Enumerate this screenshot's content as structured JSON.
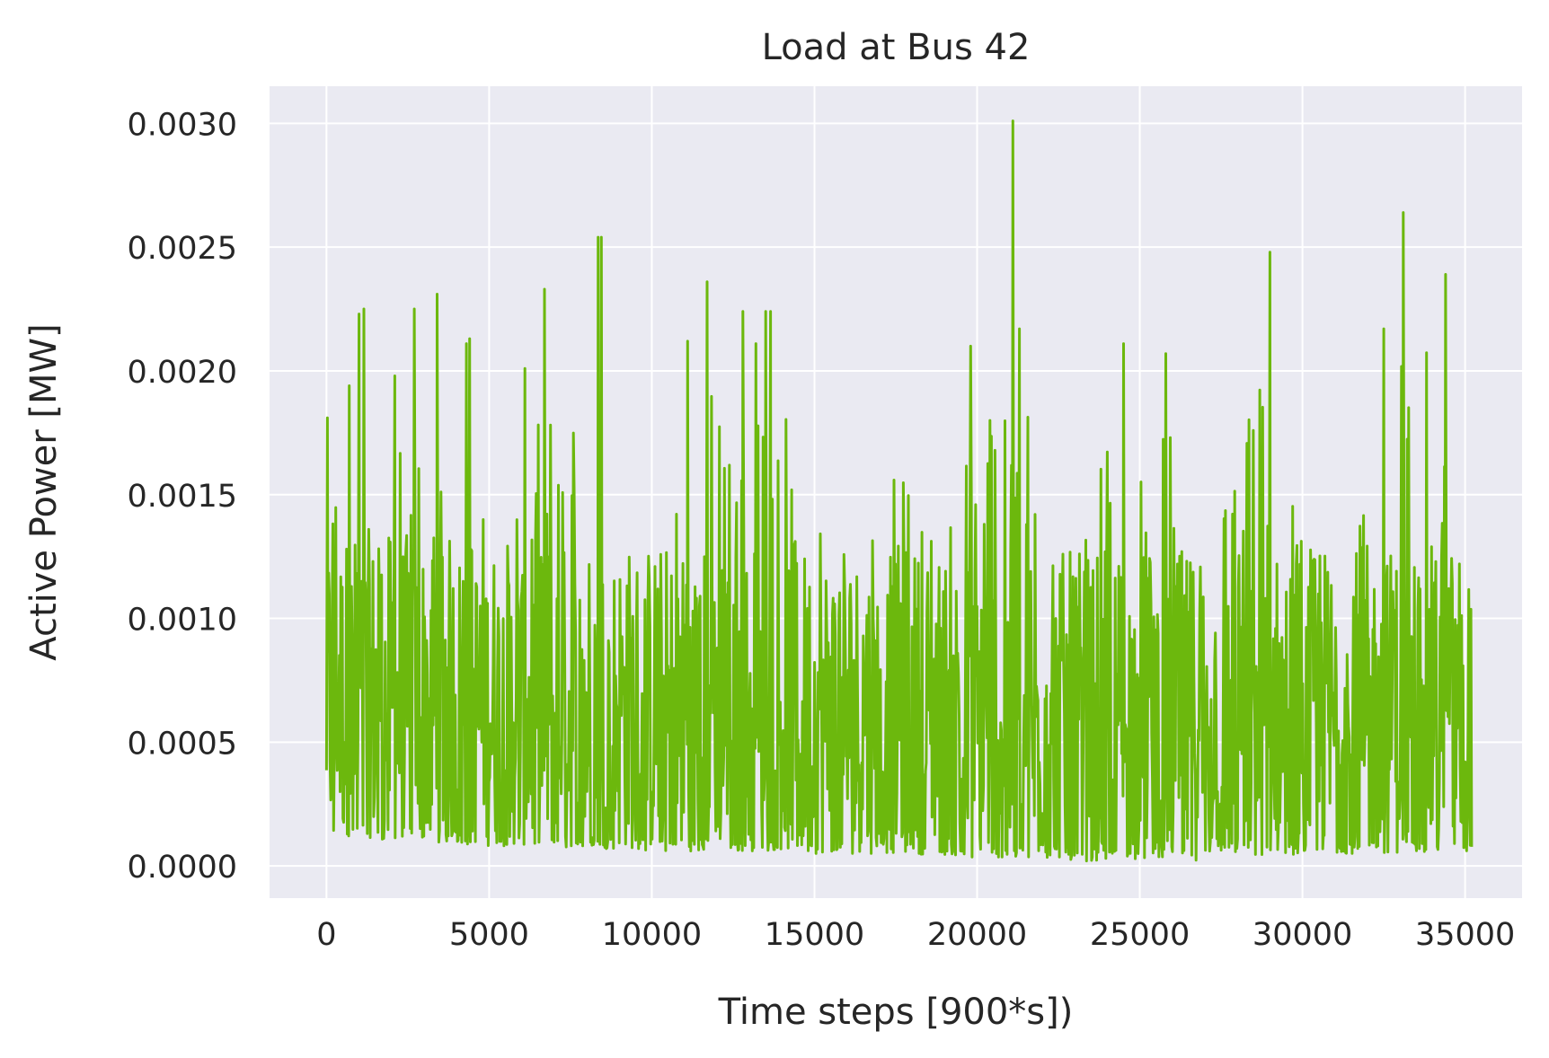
{
  "chart_data": {
    "type": "line",
    "title": "Load at Bus 42",
    "xlabel": "Time steps [900*s])",
    "ylabel": "Active Power [MW]",
    "xlim": [
      -1750,
      36750
    ],
    "ylim": [
      -0.00013,
      0.00315
    ],
    "xticks": [
      0,
      5000,
      10000,
      15000,
      20000,
      25000,
      30000,
      35000
    ],
    "xtick_labels": [
      "0",
      "5000",
      "10000",
      "15000",
      "20000",
      "25000",
      "30000",
      "35000"
    ],
    "yticks": [
      0.0,
      0.0005,
      0.001,
      0.0015,
      0.002,
      0.0025,
      0.003
    ],
    "ytick_labels": [
      "0.0000",
      "0.0005",
      "0.0010",
      "0.0015",
      "0.0020",
      "0.0025",
      "0.0030"
    ],
    "grid": true,
    "colors": {
      "background": "#eaeaf2",
      "grid": "#ffffff",
      "series": "#6cb80d"
    },
    "series": [
      {
        "color": "#6cb80d",
        "envelope": {
          "x": [
            0,
            1000,
            2000,
            3000,
            4000,
            5000,
            6000,
            7000,
            8000,
            9000,
            10000,
            11000,
            12000,
            13000,
            14000,
            15000,
            16000,
            17000,
            18000,
            19000,
            20000,
            21000,
            22000,
            23000,
            24000,
            25000,
            26000,
            27000,
            28000,
            29000,
            30000,
            31000,
            32000,
            33000,
            34000,
            35000
          ],
          "upper": [
            0.0018,
            0.0022,
            0.002,
            0.0023,
            0.0021,
            0.0016,
            0.002,
            0.0023,
            0.0025,
            0.0017,
            0.0015,
            0.0021,
            0.0024,
            0.0022,
            0.0022,
            0.0018,
            0.0016,
            0.0018,
            0.0019,
            0.0018,
            0.0021,
            0.003,
            0.0016,
            0.0019,
            0.0021,
            0.0019,
            0.0021,
            0.0016,
            0.002,
            0.0025,
            0.0016,
            0.0019,
            0.0018,
            0.0026,
            0.0024,
            0.0016
          ],
          "lower": [
            0.00012,
            0.00012,
            0.0001,
            0.0001,
            9e-05,
            8e-05,
            8e-05,
            7e-05,
            7e-05,
            7e-05,
            6e-05,
            6e-05,
            6e-05,
            6e-05,
            6e-05,
            5e-05,
            5e-05,
            5e-05,
            5e-05,
            4e-05,
            3e-05,
            3e-05,
            3e-05,
            2e-05,
            2e-05,
            3e-05,
            3e-05,
            2e-05,
            4e-05,
            4e-05,
            4e-05,
            5e-05,
            5e-05,
            5e-05,
            6e-05,
            6e-05
          ]
        },
        "peaks": [
          {
            "x": 30,
            "y": 0.00181
          },
          {
            "x": 700,
            "y": 0.00194
          },
          {
            "x": 1000,
            "y": 0.00223
          },
          {
            "x": 1150,
            "y": 0.00225
          },
          {
            "x": 2100,
            "y": 0.00198
          },
          {
            "x": 2700,
            "y": 0.00225
          },
          {
            "x": 3400,
            "y": 0.00231
          },
          {
            "x": 4300,
            "y": 0.00211
          },
          {
            "x": 4400,
            "y": 0.00213
          },
          {
            "x": 6100,
            "y": 0.00201
          },
          {
            "x": 6700,
            "y": 0.00233
          },
          {
            "x": 8350,
            "y": 0.00254
          },
          {
            "x": 8450,
            "y": 0.00254
          },
          {
            "x": 11100,
            "y": 0.00212
          },
          {
            "x": 11700,
            "y": 0.00236
          },
          {
            "x": 12800,
            "y": 0.00224
          },
          {
            "x": 13200,
            "y": 0.00211
          },
          {
            "x": 13500,
            "y": 0.00224
          },
          {
            "x": 13650,
            "y": 0.00224
          },
          {
            "x": 19800,
            "y": 0.0021
          },
          {
            "x": 21100,
            "y": 0.00301
          },
          {
            "x": 21300,
            "y": 0.00217
          },
          {
            "x": 24500,
            "y": 0.00211
          },
          {
            "x": 25800,
            "y": 0.00207
          },
          {
            "x": 29000,
            "y": 0.00248
          },
          {
            "x": 32500,
            "y": 0.00217
          },
          {
            "x": 33100,
            "y": 0.00264
          },
          {
            "x": 34400,
            "y": 0.00239
          }
        ]
      }
    ]
  }
}
